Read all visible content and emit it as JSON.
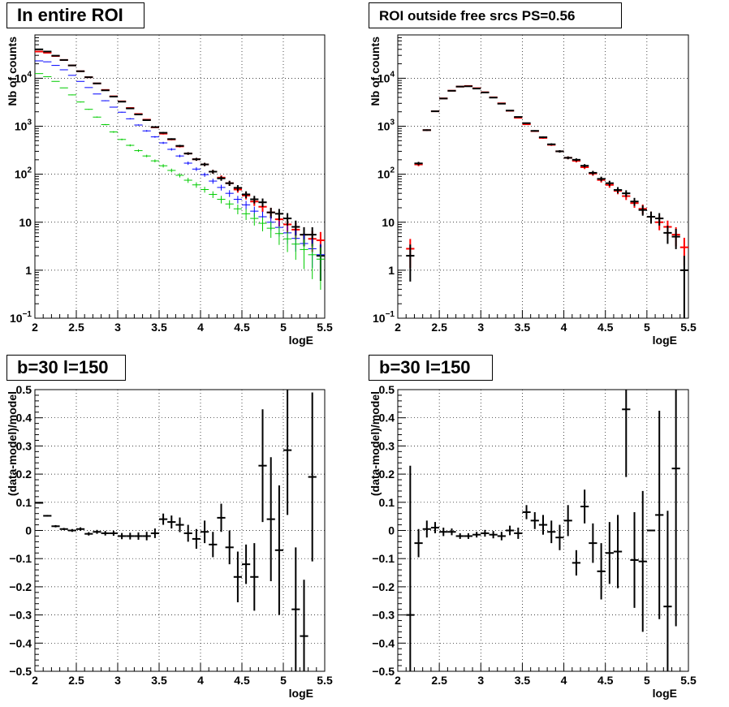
{
  "colors": {
    "red": "#ff0000",
    "blue": "#0000ff",
    "green": "#00cc00",
    "black": "#000000",
    "grid": "#000000"
  },
  "chart_data": [
    {
      "type": "scatter",
      "title": "In entire ROI",
      "xlabel": "logE",
      "ylabel": "Nb of counts",
      "xlim": [
        2,
        5.5
      ],
      "ylim": [
        0.1,
        80000
      ],
      "yscale": "log",
      "grid": true,
      "x_ticks": [
        "2",
        "2.5",
        "3",
        "3.5",
        "4",
        "4.5",
        "5",
        "5.5"
      ],
      "y_ticks": [
        "10^-1",
        "1",
        "10",
        "10^2",
        "10^3",
        "10^4"
      ],
      "series": [
        {
          "color": "red",
          "x": [
            2.05,
            2.15,
            2.25,
            2.35,
            2.45,
            2.55,
            2.65,
            2.75,
            2.85,
            2.95,
            3.05,
            3.15,
            3.25,
            3.35,
            3.45,
            3.55,
            3.65,
            3.75,
            3.85,
            3.95,
            4.05,
            4.15,
            4.25,
            4.35,
            4.45,
            4.55,
            4.65,
            4.75,
            4.85,
            4.95,
            5.05,
            5.15,
            5.25,
            5.35,
            5.45
          ],
          "y": [
            36000,
            34000,
            29000,
            24000,
            18500,
            14000,
            10500,
            7800,
            5700,
            4200,
            3300,
            2400,
            1800,
            1370,
            950,
            700,
            530,
            380,
            270,
            205,
            160,
            113,
            85,
            65,
            48,
            36,
            27,
            21,
            16,
            11.5,
            9,
            7,
            5.5,
            4.5,
            4.2
          ],
          "yerr_rel": [
            0.01,
            0.01,
            0.01,
            0.01,
            0.01,
            0.01,
            0.01,
            0.01,
            0.01,
            0.02,
            0.02,
            0.02,
            0.02,
            0.03,
            0.03,
            0.04,
            0.04,
            0.05,
            0.06,
            0.07,
            0.08,
            0.09,
            0.11,
            0.12,
            0.14,
            0.17,
            0.19,
            0.22,
            0.25,
            0.29,
            0.33,
            0.38,
            0.43,
            0.47,
            0.49
          ]
        },
        {
          "color": "black",
          "x": [
            2.05,
            2.15,
            2.25,
            2.35,
            2.45,
            2.55,
            2.65,
            2.75,
            2.85,
            2.95,
            3.05,
            3.15,
            3.25,
            3.35,
            3.45,
            3.55,
            3.65,
            3.75,
            3.85,
            3.95,
            4.05,
            4.15,
            4.25,
            4.35,
            4.45,
            4.55,
            4.65,
            4.75,
            4.85,
            4.95,
            5.05,
            5.15,
            5.25,
            5.35,
            5.45
          ],
          "y": [
            40000,
            36000,
            29500,
            24000,
            18500,
            14000,
            10500,
            7800,
            5600,
            4150,
            3250,
            2350,
            1760,
            1340,
            960,
            730,
            540,
            390,
            270,
            205,
            160,
            113,
            82,
            65,
            52,
            38,
            30,
            26,
            16,
            15,
            12,
            8,
            5.5,
            5.5,
            2
          ],
          "yerr_rel": [
            0.01,
            0.01,
            0.01,
            0.01,
            0.01,
            0.01,
            0.01,
            0.01,
            0.01,
            0.02,
            0.02,
            0.02,
            0.02,
            0.03,
            0.03,
            0.04,
            0.04,
            0.05,
            0.06,
            0.07,
            0.08,
            0.09,
            0.11,
            0.12,
            0.14,
            0.16,
            0.18,
            0.2,
            0.25,
            0.26,
            0.29,
            0.35,
            0.43,
            0.43,
            0.7
          ]
        },
        {
          "color": "blue",
          "x": [
            2.05,
            2.15,
            2.25,
            2.35,
            2.45,
            2.55,
            2.65,
            2.75,
            2.85,
            2.95,
            3.05,
            3.15,
            3.25,
            3.35,
            3.45,
            3.55,
            3.65,
            3.75,
            3.85,
            3.95,
            4.05,
            4.15,
            4.25,
            4.35,
            4.45,
            4.55,
            4.65,
            4.75,
            4.85,
            4.95,
            5.05,
            5.15,
            5.25,
            5.35,
            5.45
          ],
          "y": [
            23000,
            22000,
            18500,
            15000,
            11500,
            8600,
            6400,
            4700,
            3400,
            2500,
            1960,
            1430,
            1060,
            800,
            600,
            450,
            330,
            240,
            170,
            128,
            98,
            72,
            53,
            40,
            30,
            23,
            17,
            13,
            10,
            7.8,
            6,
            4.6,
            3.6,
            2.8,
            2.1
          ],
          "yerr_rel": [
            0.01,
            0.01,
            0.01,
            0.01,
            0.01,
            0.01,
            0.01,
            0.01,
            0.02,
            0.02,
            0.02,
            0.03,
            0.03,
            0.04,
            0.04,
            0.05,
            0.06,
            0.06,
            0.08,
            0.09,
            0.1,
            0.12,
            0.14,
            0.16,
            0.18,
            0.21,
            0.24,
            0.28,
            0.32,
            0.36,
            0.41,
            0.47,
            0.53,
            0.6,
            0.69
          ]
        },
        {
          "color": "green",
          "x": [
            2.05,
            2.15,
            2.25,
            2.35,
            2.45,
            2.55,
            2.65,
            2.75,
            2.85,
            2.95,
            3.05,
            3.15,
            3.25,
            3.35,
            3.45,
            3.55,
            3.65,
            3.75,
            3.85,
            3.95,
            4.05,
            4.15,
            4.25,
            4.35,
            4.45,
            4.55,
            4.65,
            4.75,
            4.85,
            4.95,
            5.05,
            5.15,
            5.25,
            5.35,
            5.45
          ],
          "y": [
            12500,
            10800,
            8600,
            6300,
            4500,
            3200,
            2250,
            1550,
            1080,
            760,
            530,
            400,
            310,
            240,
            190,
            150,
            120,
            95,
            75,
            60,
            48,
            38,
            30,
            24,
            19,
            15,
            12,
            9.5,
            7.5,
            5.8,
            4.5,
            3.5,
            2.7,
            2.1,
            1.7
          ],
          "yerr_rel": [
            0.01,
            0.01,
            0.01,
            0.01,
            0.02,
            0.02,
            0.02,
            0.03,
            0.03,
            0.04,
            0.04,
            0.05,
            0.06,
            0.06,
            0.07,
            0.08,
            0.09,
            0.1,
            0.12,
            0.13,
            0.14,
            0.16,
            0.18,
            0.2,
            0.23,
            0.26,
            0.29,
            0.32,
            0.37,
            0.42,
            0.47,
            0.53,
            0.61,
            0.69,
            0.77
          ]
        }
      ]
    },
    {
      "type": "scatter",
      "title": "ROI outside free srcs PS=0.56",
      "xlabel": "logE",
      "ylabel": "Nb of counts",
      "xlim": [
        2,
        5.5
      ],
      "ylim": [
        0.1,
        80000
      ],
      "yscale": "log",
      "grid": true,
      "x_ticks": [
        "2",
        "2.5",
        "3",
        "3.5",
        "4",
        "4.5",
        "5",
        "5.5"
      ],
      "y_ticks": [
        "10^-1",
        "1",
        "10",
        "10^2",
        "10^3",
        "10^4"
      ],
      "series": [
        {
          "color": "red",
          "x": [
            2.15,
            2.25,
            2.35,
            2.45,
            2.55,
            2.65,
            2.75,
            2.85,
            2.95,
            3.05,
            3.15,
            3.25,
            3.35,
            3.45,
            3.55,
            3.65,
            3.75,
            3.85,
            3.95,
            4.05,
            4.15,
            4.25,
            4.35,
            4.45,
            4.55,
            4.65,
            4.75,
            4.85,
            4.95,
            5.05,
            5.15,
            5.25,
            5.35,
            5.45
          ],
          "y": [
            2.8,
            160,
            830,
            2050,
            3800,
            5500,
            6700,
            6900,
            6200,
            5100,
            4000,
            3000,
            2100,
            1500,
            1100,
            790,
            570,
            410,
            300,
            220,
            190,
            140,
            103,
            76,
            60,
            45,
            35,
            25,
            19,
            13,
            10,
            8,
            5.5,
            3
          ],
          "yerr_rel": [
            0.6,
            0.08,
            0.035,
            0.022,
            0.016,
            0.013,
            0.012,
            0.012,
            0.013,
            0.014,
            0.016,
            0.018,
            0.022,
            0.026,
            0.03,
            0.036,
            0.042,
            0.05,
            0.058,
            0.067,
            0.073,
            0.085,
            0.099,
            0.115,
            0.13,
            0.15,
            0.17,
            0.2,
            0.23,
            0.28,
            0.32,
            0.35,
            0.43,
            0.58
          ]
        },
        {
          "color": "black",
          "x": [
            2.15,
            2.25,
            2.35,
            2.45,
            2.55,
            2.65,
            2.75,
            2.85,
            2.95,
            3.05,
            3.15,
            3.25,
            3.35,
            3.45,
            3.55,
            3.65,
            3.75,
            3.85,
            3.95,
            4.05,
            4.15,
            4.25,
            4.35,
            4.45,
            4.55,
            4.65,
            4.75,
            4.85,
            4.95,
            5.05,
            5.15,
            5.25,
            5.35,
            5.45
          ],
          "y": [
            2,
            168,
            830,
            2050,
            3780,
            5480,
            6700,
            6800,
            6100,
            5050,
            3950,
            2950,
            2120,
            1560,
            1160,
            800,
            590,
            420,
            300,
            220,
            200,
            150,
            107,
            80,
            65,
            47,
            40,
            27,
            18,
            13,
            12,
            6,
            5,
            1
          ],
          "yerr_rel": [
            0.71,
            0.077,
            0.035,
            0.022,
            0.016,
            0.014,
            0.012,
            0.012,
            0.013,
            0.014,
            0.016,
            0.018,
            0.022,
            0.025,
            0.029,
            0.035,
            0.041,
            0.049,
            0.058,
            0.067,
            0.071,
            0.082,
            0.097,
            0.11,
            0.124,
            0.146,
            0.158,
            0.19,
            0.24,
            0.28,
            0.29,
            0.41,
            0.45,
            1.0
          ]
        }
      ]
    },
    {
      "type": "scatter",
      "title": "b=30 l=150",
      "xlabel": "logE",
      "ylabel": "(data-model)/model",
      "xlim": [
        2,
        5.5
      ],
      "ylim": [
        -0.5,
        0.5
      ],
      "grid": true,
      "x_ticks": [
        "2",
        "2.5",
        "3",
        "3.5",
        "4",
        "4.5",
        "5",
        "5.5"
      ],
      "y_ticks": [
        "-0.5",
        "-0.4",
        "-0.3",
        "-0.2",
        "-0.1",
        "0",
        "0.1",
        "0.2",
        "0.3",
        "0.4",
        "0.5"
      ],
      "series": [
        {
          "color": "black",
          "x": [
            2.05,
            2.15,
            2.25,
            2.35,
            2.45,
            2.55,
            2.65,
            2.75,
            2.85,
            2.95,
            3.05,
            3.15,
            3.25,
            3.35,
            3.45,
            3.55,
            3.65,
            3.75,
            3.85,
            3.95,
            4.05,
            4.15,
            4.25,
            4.35,
            4.45,
            4.55,
            4.65,
            4.75,
            4.85,
            4.95,
            5.05,
            5.15,
            5.25,
            5.35
          ],
          "y": [
            0.098,
            0.052,
            0.015,
            0.005,
            0,
            0.005,
            -0.012,
            -0.005,
            -0.01,
            -0.01,
            -0.02,
            -0.02,
            -0.02,
            -0.02,
            -0.01,
            0.04,
            0.03,
            0.02,
            -0.01,
            -0.03,
            -0.005,
            -0.05,
            0.045,
            -0.06,
            -0.165,
            -0.12,
            -0.165,
            0.23,
            0.04,
            -0.07,
            0.285,
            -0.28,
            -0.375,
            0.19
          ],
          "yerr": [
            0.003,
            0.003,
            0.004,
            0.004,
            0.005,
            0.006,
            0.006,
            0.007,
            0.008,
            0.009,
            0.011,
            0.012,
            0.013,
            0.015,
            0.017,
            0.02,
            0.023,
            0.026,
            0.03,
            0.035,
            0.04,
            0.045,
            0.05,
            0.06,
            0.09,
            0.07,
            0.12,
            0.2,
            0.22,
            0.23,
            0.23,
            0.22,
            0.2,
            0.3
          ]
        }
      ]
    },
    {
      "type": "scatter",
      "title": "b=30 l=150",
      "xlabel": "logE",
      "ylabel": "(data-model)/model",
      "xlim": [
        2,
        5.5
      ],
      "ylim": [
        -0.5,
        0.5
      ],
      "grid": true,
      "x_ticks": [
        "2",
        "2.5",
        "3",
        "3.5",
        "4",
        "4.5",
        "5",
        "5.5"
      ],
      "y_ticks": [
        "-0.5",
        "-0.4",
        "-0.3",
        "-0.2",
        "-0.1",
        "0",
        "0.1",
        "0.2",
        "0.3",
        "0.4",
        "0.5"
      ],
      "series": [
        {
          "color": "black",
          "x": [
            2.15,
            2.25,
            2.35,
            2.45,
            2.55,
            2.65,
            2.75,
            2.85,
            2.95,
            3.05,
            3.15,
            3.25,
            3.35,
            3.45,
            3.55,
            3.65,
            3.75,
            3.85,
            3.95,
            4.05,
            4.15,
            4.25,
            4.35,
            4.45,
            4.55,
            4.65,
            4.75,
            4.85,
            4.95,
            5.05,
            5.15,
            5.25,
            5.35
          ],
          "y": [
            -0.3,
            -0.045,
            0.005,
            0.01,
            -0.005,
            -0.005,
            -0.02,
            -0.02,
            -0.015,
            -0.01,
            -0.015,
            -0.02,
            0,
            -0.01,
            0.065,
            0.035,
            0.02,
            -0.005,
            -0.025,
            0.035,
            -0.115,
            0.085,
            -0.045,
            -0.145,
            -0.08,
            -0.075,
            0.43,
            -0.105,
            -0.11,
            0,
            0.055,
            -0.27,
            0.22
          ],
          "yerr": [
            0.53,
            0.05,
            0.03,
            0.02,
            0.015,
            0.012,
            0.01,
            0.01,
            0.01,
            0.012,
            0.013,
            0.015,
            0.017,
            0.02,
            0.025,
            0.03,
            0.035,
            0.04,
            0.045,
            0.055,
            0.045,
            0.06,
            0.07,
            0.1,
            0.11,
            0.13,
            0.24,
            0.17,
            0.25,
            0,
            0.37,
            0.34,
            0.56
          ]
        }
      ]
    }
  ]
}
